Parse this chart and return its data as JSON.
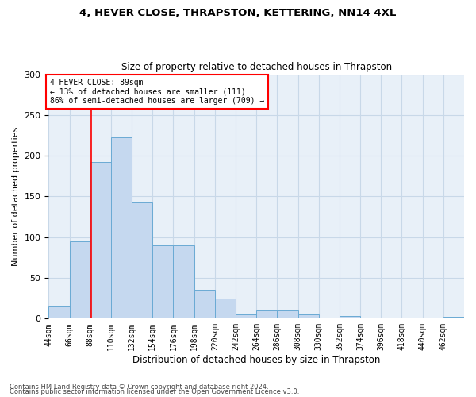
{
  "title1": "4, HEVER CLOSE, THRAPSTON, KETTERING, NN14 4XL",
  "title2": "Size of property relative to detached houses in Thrapston",
  "xlabel": "Distribution of detached houses by size in Thrapston",
  "ylabel": "Number of detached properties",
  "bin_edges": [
    44,
    66,
    88,
    110,
    132,
    154,
    176,
    198,
    220,
    242,
    264,
    286,
    308,
    330,
    352,
    374,
    396,
    418,
    440,
    462,
    484
  ],
  "bar_heights": [
    15,
    95,
    192,
    223,
    143,
    90,
    90,
    35,
    25,
    5,
    10,
    10,
    5,
    0,
    3,
    0,
    0,
    0,
    0,
    2
  ],
  "bar_color": "#c5d8ef",
  "bar_edgecolor": "#6aaad4",
  "property_size": 89,
  "annotation_text": "4 HEVER CLOSE: 89sqm\n← 13% of detached houses are smaller (111)\n86% of semi-detached houses are larger (709) →",
  "annotation_box_color": "white",
  "annotation_box_edgecolor": "red",
  "vline_color": "red",
  "ylim": [
    0,
    300
  ],
  "yticks": [
    0,
    50,
    100,
    150,
    200,
    250,
    300
  ],
  "grid_color": "#c8d8e8",
  "background_color": "#e8f0f8",
  "footnote1": "Contains HM Land Registry data © Crown copyright and database right 2024.",
  "footnote2": "Contains public sector information licensed under the Open Government Licence v3.0."
}
